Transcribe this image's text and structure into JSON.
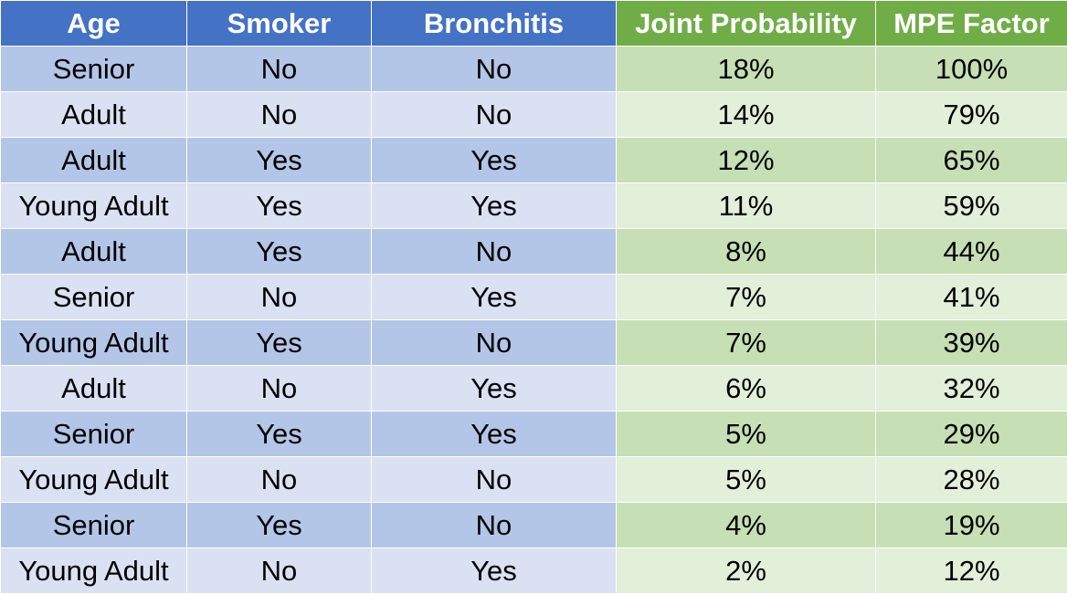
{
  "headers": {
    "age": "Age",
    "smoker": "Smoker",
    "bronchitis": "Bronchitis",
    "joint_probability": "Joint Probability",
    "mpe_factor": "MPE Factor"
  },
  "colors": {
    "header_blue": "#4472c4",
    "header_green": "#70ad47",
    "row_blue_dark": "#b4c6e7",
    "row_blue_light": "#d9e1f2",
    "row_green_dark": "#c6dfb4",
    "row_green_light": "#e2efd9"
  },
  "rows": [
    {
      "age": "Senior",
      "smoker": "No",
      "bronchitis": "No",
      "joint": "18%",
      "mpe": "100%"
    },
    {
      "age": "Adult",
      "smoker": "No",
      "bronchitis": "No",
      "joint": "14%",
      "mpe": "79%"
    },
    {
      "age": "Adult",
      "smoker": "Yes",
      "bronchitis": "Yes",
      "joint": "12%",
      "mpe": "65%"
    },
    {
      "age": "Young Adult",
      "smoker": "Yes",
      "bronchitis": "Yes",
      "joint": "11%",
      "mpe": "59%"
    },
    {
      "age": "Adult",
      "smoker": "Yes",
      "bronchitis": "No",
      "joint": "8%",
      "mpe": "44%"
    },
    {
      "age": "Senior",
      "smoker": "No",
      "bronchitis": "Yes",
      "joint": "7%",
      "mpe": "41%"
    },
    {
      "age": "Young Adult",
      "smoker": "Yes",
      "bronchitis": "No",
      "joint": "7%",
      "mpe": "39%"
    },
    {
      "age": "Adult",
      "smoker": "No",
      "bronchitis": "Yes",
      "joint": "6%",
      "mpe": "32%"
    },
    {
      "age": "Senior",
      "smoker": "Yes",
      "bronchitis": "Yes",
      "joint": "5%",
      "mpe": "29%"
    },
    {
      "age": "Young Adult",
      "smoker": "No",
      "bronchitis": "No",
      "joint": "5%",
      "mpe": "28%"
    },
    {
      "age": "Senior",
      "smoker": "Yes",
      "bronchitis": "No",
      "joint": "4%",
      "mpe": "19%"
    },
    {
      "age": "Young Adult",
      "smoker": "No",
      "bronchitis": "Yes",
      "joint": "2%",
      "mpe": "12%"
    }
  ]
}
